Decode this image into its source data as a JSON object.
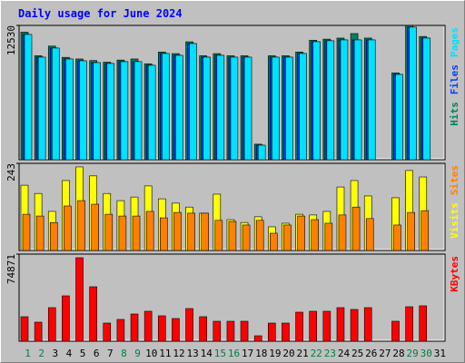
{
  "chart_data": [
    {
      "type": "bar",
      "title": "Daily usage for June 2024",
      "ylim": [
        0,
        12530
      ],
      "yticks": [
        12530
      ],
      "series": [
        {
          "name": "Hits",
          "color": "#00805c",
          "values": [
            11900,
            9700,
            10600,
            9550,
            9400,
            9250,
            9100,
            9300,
            9400,
            8950,
            10050,
            9900,
            11000,
            9700,
            9900,
            9700,
            9700,
            1450,
            9700,
            9700,
            10050,
            11150,
            11250,
            11350,
            11770,
            11350,
            0,
            8100,
            12530,
            11500,
            0
          ]
        },
        {
          "name": "Files",
          "color": "#0040ff",
          "values": [
            11690,
            9570,
            10420,
            9400,
            9230,
            9060,
            8980,
            9150,
            9150,
            8810,
            9910,
            9740,
            10840,
            9570,
            9740,
            9570,
            9570,
            1355,
            9570,
            9570,
            9910,
            11010,
            11100,
            11180,
            11180,
            11180,
            0,
            7960,
            12370,
            11350,
            0
          ]
        },
        {
          "name": "Pages",
          "color": "#00e0ff",
          "values": [
            11690,
            9570,
            10420,
            9400,
            9230,
            9060,
            8980,
            9150,
            9150,
            8810,
            9910,
            9740,
            10840,
            9570,
            9740,
            9570,
            9570,
            1355,
            9570,
            9570,
            9910,
            11010,
            11100,
            11180,
            11180,
            11180,
            0,
            7960,
            12370,
            11350,
            0
          ]
        }
      ]
    },
    {
      "type": "bar",
      "ylim": [
        0,
        243
      ],
      "yticks": [
        243
      ],
      "series": [
        {
          "name": "Visits",
          "color": "#ffff00",
          "values": [
            182,
            159,
            109,
            195,
            233,
            208,
            159,
            139,
            149,
            180,
            144,
            132,
            121,
            104,
            157,
            86,
            78,
            94,
            66,
            76,
            101,
            99,
            109,
            177,
            195,
            152,
            0,
            147,
            223,
            205,
            0
          ]
        },
        {
          "name": "Sites",
          "color": "#ff8000",
          "values": [
            101,
            96,
            78,
            124,
            139,
            129,
            101,
            96,
            96,
            109,
            91,
            106,
            104,
            104,
            84,
            81,
            71,
            84,
            48,
            71,
            96,
            86,
            76,
            99,
            121,
            89,
            0,
            71,
            106,
            111,
            0
          ]
        }
      ]
    },
    {
      "type": "bar",
      "ylim": [
        0,
        74871
      ],
      "yticks": [
        74871
      ],
      "categories": [
        "1",
        "2",
        "3",
        "4",
        "5",
        "6",
        "7",
        "8",
        "9",
        "10",
        "11",
        "12",
        "13",
        "14",
        "15",
        "16",
        "17",
        "18",
        "19",
        "20",
        "21",
        "22",
        "23",
        "24",
        "25",
        "26",
        "27",
        "28",
        "29",
        "30",
        "31"
      ],
      "category_colors": [
        "#008040",
        "#008040",
        "#000000",
        "#000000",
        "#000000",
        "#000000",
        "#000000",
        "#008040",
        "#008040",
        "#000000",
        "#000000",
        "#000000",
        "#000000",
        "#000000",
        "#008040",
        "#008040",
        "#000000",
        "#000000",
        "#000000",
        "#000000",
        "#000000",
        "#008040",
        "#008040",
        "#000000",
        "#000000",
        "#000000",
        "#000000",
        "#000000",
        "#008040",
        "#008040",
        "#000000"
      ],
      "series": [
        {
          "name": "KBytes",
          "color": "#ff0000",
          "values": [
            21060,
            16380,
            28860,
            39000,
            71760,
            46800,
            15600,
            18720,
            23400,
            25740,
            21840,
            19500,
            28080,
            21060,
            17160,
            17160,
            17160,
            4680,
            15600,
            15600,
            24960,
            25740,
            25740,
            28860,
            27300,
            28860,
            0,
            17160,
            29640,
            30420,
            0
          ]
        }
      ]
    }
  ]
}
